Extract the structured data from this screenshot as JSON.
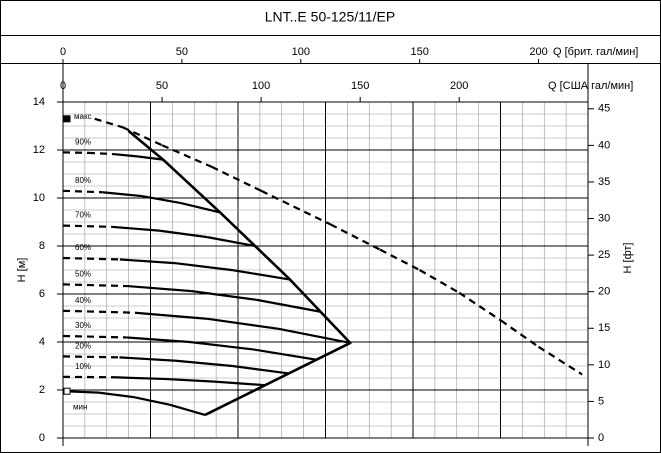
{
  "chart_data": {
    "type": "line",
    "title": "LNT..E 50-125/11/EP",
    "xlabel": "Q [США гал/мин]",
    "xlim": [
      0,
      265
    ],
    "xticks": [
      0,
      50,
      100,
      150,
      200
    ],
    "x2label": "Q [брит. гал/мин]",
    "x2lim": [
      0,
      220.8
    ],
    "x2ticks": [
      0,
      50,
      100,
      150,
      200
    ],
    "ylabel": "H [м]",
    "ylim": [
      0,
      14
    ],
    "yticks": [
      0,
      2,
      4,
      6,
      8,
      10,
      12,
      14
    ],
    "y2label": "H [фт]",
    "y2lim": [
      0,
      45.93
    ],
    "y2ticks": [
      0,
      5,
      10,
      15,
      20,
      25,
      30,
      35,
      40,
      45
    ],
    "grid": true,
    "color": "#000000",
    "series": [
      {
        "name": "макс",
        "x": [
          16,
          30,
          50,
          75,
          100,
          135,
          160,
          180,
          200,
          221,
          240,
          262
        ],
        "values": [
          13.3,
          12.95,
          12.2,
          11.3,
          10.3,
          8.9,
          7.85,
          7.0,
          6.05,
          4.9,
          3.8,
          2.65
        ],
        "styles": [
          "dashed",
          "dashed",
          "dashed",
          "dashed",
          "dashed",
          "dashed",
          "dashed",
          "dashed",
          "dashed",
          "dashed",
          "dashed",
          "dashed"
        ]
      },
      {
        "name": "90%",
        "x": [
          0,
          12.6,
          25.3,
          37.9,
          50.5
        ],
        "values": [
          11.9,
          11.88,
          11.83,
          11.73,
          11.6
        ],
        "styles": [
          "dashed",
          "dashed",
          "dashed",
          "solid",
          "solid"
        ]
      },
      {
        "name": "80%",
        "x": [
          0,
          19.8,
          39.7,
          59.5,
          79.3
        ],
        "values": [
          10.3,
          10.24,
          10.08,
          9.79,
          9.4
        ],
        "styles": [
          "dashed",
          "dashed",
          "solid",
          "solid",
          "solid"
        ]
      },
      {
        "name": "70%",
        "x": [
          0,
          24.3,
          48.5,
          72.8,
          97
        ],
        "values": [
          8.85,
          8.8,
          8.64,
          8.37,
          8.0
        ],
        "styles": [
          "dashed",
          "dashed",
          "solid",
          "solid",
          "solid"
        ]
      },
      {
        "name": "60%",
        "x": [
          0,
          28.7,
          57.3,
          86,
          114.6
        ],
        "values": [
          7.5,
          7.44,
          7.28,
          6.99,
          6.6
        ],
        "styles": [
          "dashed",
          "dashed",
          "solid",
          "solid",
          "solid"
        ]
      },
      {
        "name": "50%",
        "x": [
          0,
          32.5,
          65,
          97.5,
          130
        ],
        "values": [
          6.4,
          6.33,
          6.12,
          5.76,
          5.26
        ],
        "styles": [
          "dashed",
          "dashed",
          "solid",
          "solid",
          "solid"
        ]
      },
      {
        "name": "40%",
        "x": [
          0,
          36.3,
          72.5,
          108.8,
          145
        ],
        "values": [
          5.3,
          5.22,
          4.97,
          4.55,
          3.96
        ],
        "styles": [
          "dashed",
          "dashed",
          "solid",
          "solid",
          "solid"
        ]
      },
      {
        "name": "30%",
        "x": [
          0,
          32,
          64,
          96,
          128
        ],
        "values": [
          4.25,
          4.19,
          4.0,
          3.69,
          3.26
        ],
        "styles": [
          "dashed",
          "dashed",
          "solid",
          "solid",
          "solid"
        ]
      },
      {
        "name": "20%",
        "x": [
          0,
          28.5,
          57,
          85.5,
          114
        ],
        "values": [
          3.4,
          3.36,
          3.22,
          3.0,
          2.69
        ],
        "styles": [
          "dashed",
          "dashed",
          "solid",
          "solid",
          "solid"
        ]
      },
      {
        "name": "10%",
        "x": [
          0,
          25.5,
          51,
          76.5,
          102
        ],
        "values": [
          2.55,
          2.53,
          2.46,
          2.35,
          2.2
        ],
        "styles": [
          "dashed",
          "dashed",
          "solid",
          "solid",
          "solid"
        ]
      },
      {
        "name": "мин",
        "x": [
          0,
          17.9,
          35.9,
          53.8,
          71.7
        ],
        "values": [
          1.95,
          1.89,
          1.7,
          1.39,
          0.96
        ],
        "styles": [
          "solid",
          "solid",
          "solid",
          "solid",
          "solid"
        ]
      }
    ],
    "envelope": {
      "x": [
        33,
        50.5,
        79.3,
        114.6,
        145,
        71.7
      ],
      "values": [
        12.8,
        11.6,
        9.4,
        6.6,
        3.96,
        0.96
      ]
    }
  }
}
